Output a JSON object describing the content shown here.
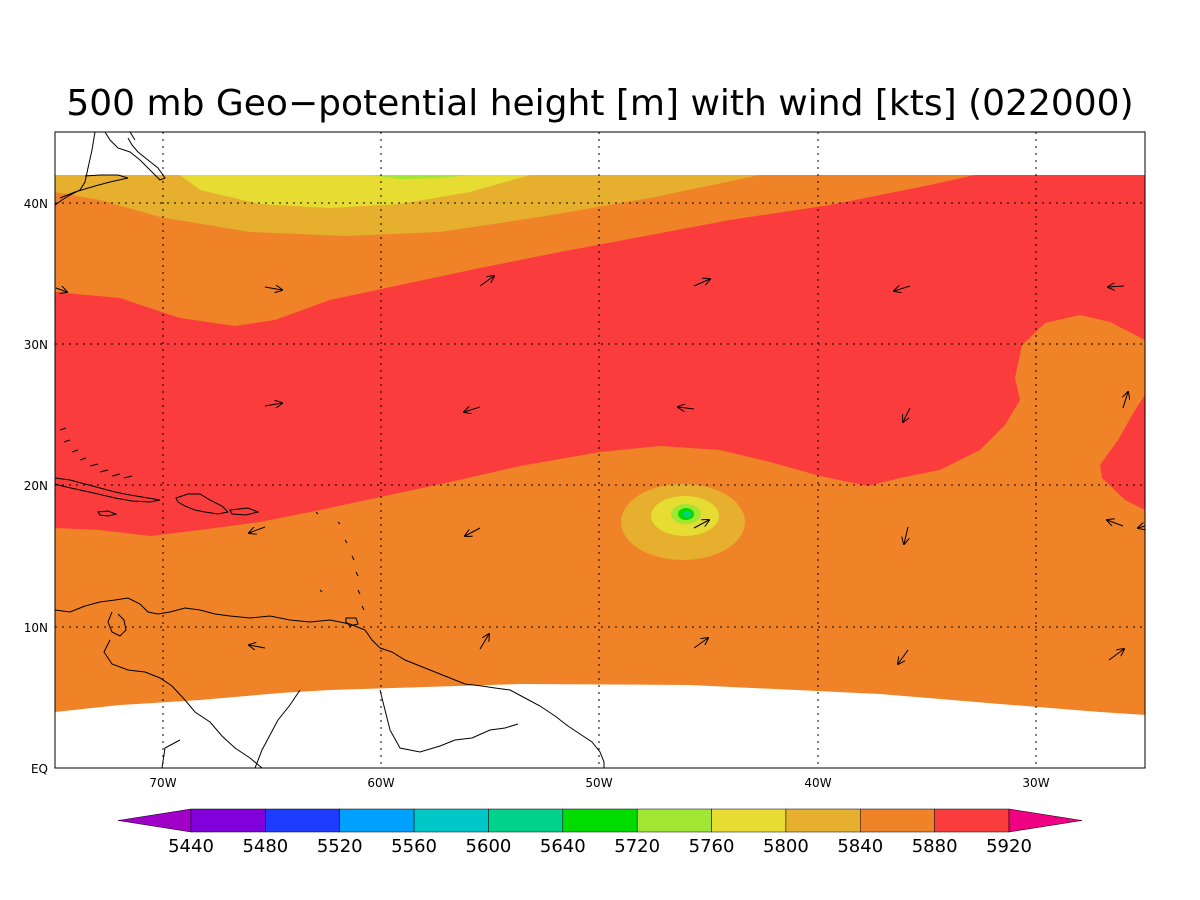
{
  "title": "500 mb Geo−potential height [m] with wind [kts] (022000)",
  "lat_labels": [
    "40N",
    "30N",
    "20N",
    "10N",
    "EQ"
  ],
  "lon_labels": [
    "70W",
    "60W",
    "50W",
    "40W",
    "30W"
  ],
  "colorbar": {
    "labels": [
      "5440",
      "5480",
      "5520",
      "5560",
      "5600",
      "5640",
      "5720",
      "5760",
      "5800",
      "5840",
      "5880",
      "5920"
    ],
    "colors": [
      "#a000c8",
      "#8200dc",
      "#1e3cff",
      "#00a0ff",
      "#00c8c8",
      "#00d28c",
      "#00dc00",
      "#a0e632",
      "#e6dc32",
      "#e6af2d",
      "#f08228",
      "#fa3c3c",
      "#f00082"
    ]
  },
  "legend_style": "horizontal bar with triangular end arrows, below map",
  "map_extent": {
    "lon_min": -75,
    "lon_max": -25,
    "lat_min": 0,
    "lat_max": 45
  },
  "field_colors": {
    "5920_plus": "#fa3c3c",
    "5880": "#f08228",
    "5840": "#e6af2d",
    "5800": "#e6dc32",
    "5760": "#a0e632",
    "5720": "#00dc00",
    "5640": "#00d28c"
  },
  "grid": "dotted",
  "coastline_color": "#000000"
}
